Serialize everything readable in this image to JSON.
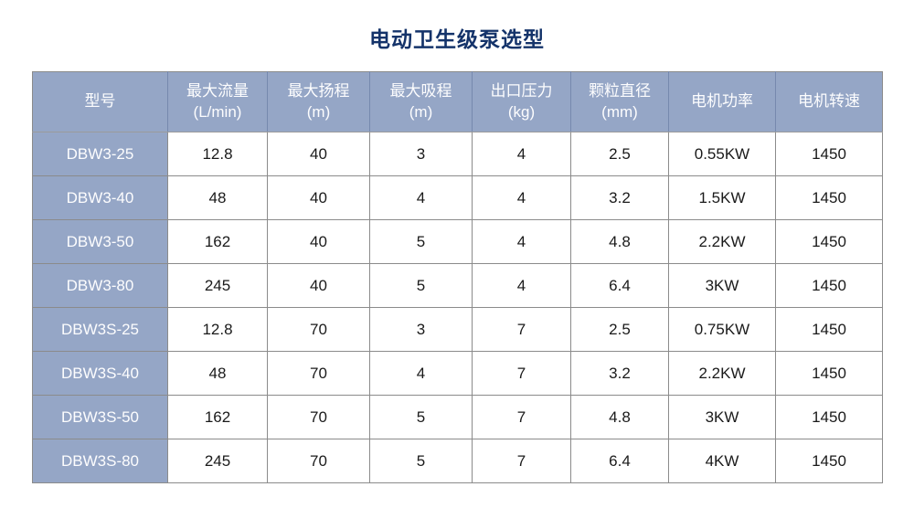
{
  "title": "电动卫生级泵选型",
  "colors": {
    "title": "#14336a",
    "header_bg": "#95a6c6",
    "header_text": "#fdfdfe",
    "body_text": "#1a1a1a",
    "border": "#8b8b8b"
  },
  "table": {
    "columns": [
      {
        "label": "型号",
        "sub": ""
      },
      {
        "label": "最大流量",
        "sub": "(L/min)"
      },
      {
        "label": "最大扬程",
        "sub": "(m)"
      },
      {
        "label": "最大吸程",
        "sub": "(m)"
      },
      {
        "label": "出口压力",
        "sub": "(kg)"
      },
      {
        "label": "颗粒直径",
        "sub": "(mm)"
      },
      {
        "label": "电机功率",
        "sub": ""
      },
      {
        "label": "电机转速",
        "sub": ""
      }
    ],
    "rows": [
      [
        "DBW3-25",
        "12.8",
        "40",
        "3",
        "4",
        "2.5",
        "0.55KW",
        "1450"
      ],
      [
        "DBW3-40",
        "48",
        "40",
        "4",
        "4",
        "3.2",
        "1.5KW",
        "1450"
      ],
      [
        "DBW3-50",
        "162",
        "40",
        "5",
        "4",
        "4.8",
        "2.2KW",
        "1450"
      ],
      [
        "DBW3-80",
        "245",
        "40",
        "5",
        "4",
        "6.4",
        "3KW",
        "1450"
      ],
      [
        "DBW3S-25",
        "12.8",
        "70",
        "3",
        "7",
        "2.5",
        "0.75KW",
        "1450"
      ],
      [
        "DBW3S-40",
        "48",
        "70",
        "4",
        "7",
        "3.2",
        "2.2KW",
        "1450"
      ],
      [
        "DBW3S-50",
        "162",
        "70",
        "5",
        "7",
        "4.8",
        "3KW",
        "1450"
      ],
      [
        "DBW3S-80",
        "245",
        "70",
        "5",
        "7",
        "6.4",
        "4KW",
        "1450"
      ]
    ]
  },
  "chart_data": {
    "type": "table",
    "title": "电动卫生级泵选型",
    "columns": [
      "型号",
      "最大流量 (L/min)",
      "最大扬程 (m)",
      "最大吸程 (m)",
      "出口压力 (kg)",
      "颗粒直径 (mm)",
      "电机功率",
      "电机转速"
    ],
    "rows": [
      [
        "DBW3-25",
        12.8,
        40,
        3,
        4,
        2.5,
        "0.55KW",
        1450
      ],
      [
        "DBW3-40",
        48,
        40,
        4,
        4,
        3.2,
        "1.5KW",
        1450
      ],
      [
        "DBW3-50",
        162,
        40,
        5,
        4,
        4.8,
        "2.2KW",
        1450
      ],
      [
        "DBW3-80",
        245,
        40,
        5,
        4,
        6.4,
        "3KW",
        1450
      ],
      [
        "DBW3S-25",
        12.8,
        70,
        3,
        7,
        2.5,
        "0.75KW",
        1450
      ],
      [
        "DBW3S-40",
        48,
        70,
        4,
        7,
        3.2,
        "2.2KW",
        1450
      ],
      [
        "DBW3S-50",
        162,
        70,
        5,
        7,
        4.8,
        "3KW",
        1450
      ],
      [
        "DBW3S-80",
        245,
        70,
        5,
        7,
        6.4,
        "4KW",
        1450
      ]
    ]
  }
}
